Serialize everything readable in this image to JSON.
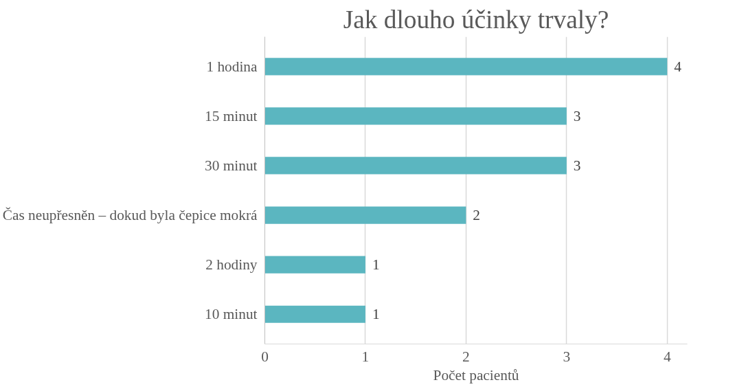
{
  "chart_data": {
    "type": "bar",
    "orientation": "horizontal",
    "title": "Jak dlouho účinky trvaly?",
    "xlabel": "Počet pacientů",
    "categories": [
      "1 hodina",
      "15 minut",
      "30 minut",
      "Čas neupřesněn – dokud byla čepice mokrá",
      "2 hodiny",
      "10 minut"
    ],
    "values": [
      4,
      3,
      3,
      2,
      1,
      1
    ],
    "color": "#5bb6c0",
    "xlim": [
      0,
      4.2
    ],
    "xticks": [
      0,
      1,
      2,
      3,
      4
    ],
    "grid": "x",
    "data_labels": true
  }
}
